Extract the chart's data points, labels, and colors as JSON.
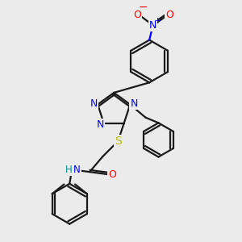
{
  "bg_color": "#ebebeb",
  "bond_color": "#1a1a1a",
  "bond_width": 1.6,
  "N_color": "#0000ff",
  "O_color": "#ff0000",
  "S_color": "#bbbb00",
  "H_color": "#008b8b",
  "fig_width": 3.0,
  "fig_height": 3.0,
  "dpi": 100,
  "nitro_N_label": "N",
  "nitro_plus": "+",
  "nitro_minus": "−",
  "S_label": "S",
  "O_label": "O",
  "NH_H": "H",
  "NH_N": "N"
}
